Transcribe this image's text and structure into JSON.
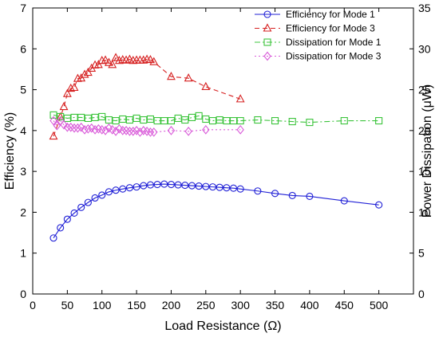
{
  "chart_data": {
    "type": "line",
    "xlabel": "Load Resistance (Ω)",
    "ylabel": "Efficiency (%)",
    "y2label": "Power Dissipation (μW)",
    "xlim": [
      0,
      550
    ],
    "ylim": [
      0,
      7
    ],
    "y2lim": [
      0,
      35
    ],
    "xticks": [
      0,
      50,
      100,
      150,
      200,
      250,
      300,
      350,
      400,
      450,
      500
    ],
    "yticks": [
      0,
      1,
      2,
      3,
      4,
      5,
      6,
      7
    ],
    "y2ticks": [
      0,
      5,
      10,
      15,
      20,
      25,
      30,
      35
    ],
    "legend_position": "top-right",
    "grid": false,
    "series": [
      {
        "name": "Efficiency for Mode 1",
        "axis": "left",
        "color": "#1f1fd6",
        "marker": "circle",
        "line": "solid",
        "x": [
          30,
          40,
          50,
          60,
          70,
          80,
          90,
          100,
          110,
          120,
          130,
          140,
          150,
          160,
          170,
          180,
          190,
          200,
          210,
          220,
          230,
          240,
          250,
          260,
          270,
          280,
          290,
          300,
          325,
          350,
          375,
          400,
          450,
          500
        ],
        "y": [
          1.37,
          1.62,
          1.83,
          1.98,
          2.12,
          2.24,
          2.35,
          2.42,
          2.5,
          2.54,
          2.57,
          2.6,
          2.62,
          2.65,
          2.67,
          2.68,
          2.69,
          2.68,
          2.67,
          2.66,
          2.65,
          2.64,
          2.63,
          2.62,
          2.61,
          2.6,
          2.59,
          2.57,
          2.52,
          2.46,
          2.41,
          2.39,
          2.28,
          2.18
        ]
      },
      {
        "name": "Efficiency for Mode 3",
        "axis": "left",
        "color": "#d62020",
        "marker": "triangle",
        "line": "dashed",
        "x": [
          30,
          40,
          45,
          50,
          55,
          60,
          65,
          70,
          75,
          80,
          85,
          90,
          95,
          100,
          105,
          110,
          115,
          120,
          125,
          130,
          135,
          140,
          145,
          150,
          155,
          160,
          165,
          170,
          175,
          200,
          225,
          250,
          300
        ],
        "y": [
          3.86,
          4.33,
          4.58,
          4.9,
          5.03,
          5.05,
          5.27,
          5.28,
          5.37,
          5.42,
          5.52,
          5.6,
          5.61,
          5.71,
          5.72,
          5.66,
          5.61,
          5.78,
          5.71,
          5.73,
          5.72,
          5.74,
          5.71,
          5.72,
          5.72,
          5.72,
          5.74,
          5.73,
          5.68,
          5.32,
          5.28,
          5.07,
          4.77
        ]
      },
      {
        "name": "Dissipation for Mode 1",
        "axis": "right",
        "color": "#3cc43c",
        "marker": "square",
        "line": "dashdot",
        "x": [
          30,
          40,
          50,
          60,
          70,
          80,
          90,
          100,
          110,
          120,
          130,
          140,
          150,
          160,
          170,
          180,
          190,
          200,
          210,
          220,
          230,
          240,
          250,
          260,
          270,
          280,
          290,
          300,
          325,
          350,
          375,
          400,
          450,
          500
        ],
        "y": [
          21.9,
          21.7,
          21.5,
          21.6,
          21.6,
          21.5,
          21.6,
          21.7,
          21.3,
          21.2,
          21.4,
          21.3,
          21.5,
          21.3,
          21.4,
          21.2,
          21.2,
          21.2,
          21.5,
          21.3,
          21.6,
          21.8,
          21.4,
          21.2,
          21.3,
          21.2,
          21.2,
          21.2,
          21.3,
          21.2,
          21.1,
          21.0,
          21.2,
          21.2
        ]
      },
      {
        "name": "Dissipation for Mode 3",
        "axis": "right",
        "color": "#d95bd9",
        "marker": "diamond",
        "line": "dotted",
        "x": [
          30,
          35,
          40,
          45,
          50,
          55,
          60,
          65,
          70,
          75,
          80,
          85,
          90,
          95,
          100,
          105,
          110,
          115,
          120,
          125,
          130,
          135,
          140,
          145,
          150,
          155,
          160,
          165,
          170,
          175,
          200,
          225,
          250,
          300
        ],
        "y": [
          21.2,
          20.6,
          21.2,
          20.7,
          20.4,
          20.4,
          20.3,
          20.3,
          20.4,
          20.1,
          20.2,
          20.3,
          20.1,
          20.2,
          20.1,
          20.0,
          20.3,
          20.1,
          19.9,
          20.2,
          20.0,
          20.0,
          19.9,
          19.9,
          20.0,
          19.8,
          20.0,
          19.9,
          19.8,
          19.8,
          20.0,
          19.9,
          20.1,
          20.1
        ]
      }
    ]
  }
}
